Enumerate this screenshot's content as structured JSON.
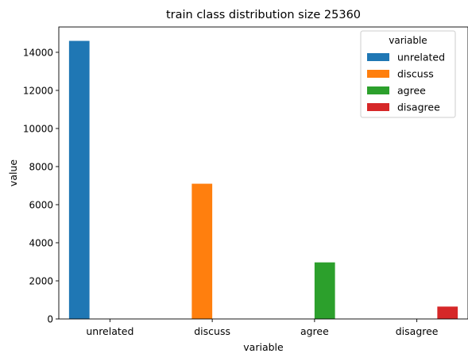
{
  "chart_data": {
    "type": "bar",
    "title": "train class distribution size 25360",
    "xlabel": "variable",
    "ylabel": "value",
    "categories": [
      "unrelated",
      "discuss",
      "agree",
      "disagree"
    ],
    "series": [
      {
        "name": "unrelated",
        "color": "#1f77b4",
        "values": [
          14600,
          0,
          0,
          0
        ]
      },
      {
        "name": "discuss",
        "color": "#ff7f0e",
        "values": [
          0,
          7100,
          0,
          0
        ]
      },
      {
        "name": "agree",
        "color": "#2ca02c",
        "values": [
          0,
          0,
          2970,
          0
        ]
      },
      {
        "name": "disagree",
        "color": "#d62728",
        "values": [
          0,
          0,
          0,
          650
        ]
      }
    ],
    "ylim": [
      0,
      15330
    ],
    "yticks": [
      0,
      2000,
      4000,
      6000,
      8000,
      10000,
      12000,
      14000
    ],
    "legend": {
      "title": "variable",
      "placement": "upper-right"
    },
    "grid": false
  }
}
